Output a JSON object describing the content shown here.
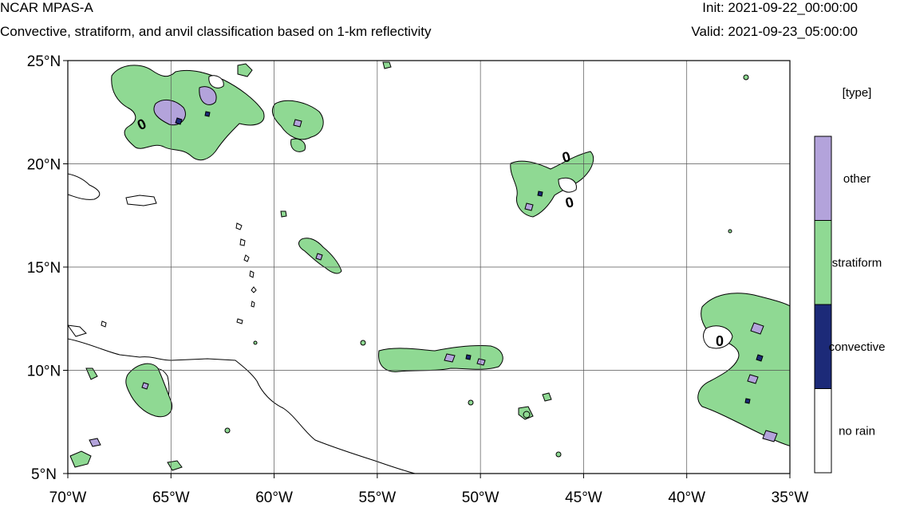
{
  "header": {
    "model": "NCAR MPAS-A",
    "subtitle": "Convective, stratiform, and anvil classification based on 1-km reflectivity",
    "init": "Init: 2021-09-22_00:00:00",
    "valid": "Valid: 2021-09-23_05:00:00"
  },
  "map": {
    "lon_range": [
      -70,
      -35
    ],
    "lat_range": [
      5,
      25
    ],
    "lon_ticks": [
      "70°W",
      "65°W",
      "60°W",
      "55°W",
      "50°W",
      "45°W",
      "40°W",
      "35°W"
    ],
    "lat_ticks": [
      "5°N",
      "10°N",
      "15°N",
      "20°N",
      "25°N"
    ],
    "grid": true,
    "contour_label": "0"
  },
  "legend": {
    "title": "[type]",
    "categories": [
      {
        "label": "other",
        "color": "#b3a3db"
      },
      {
        "label": "stratiform",
        "color": "#8fd993"
      },
      {
        "label": "convective",
        "color": "#1c2a78"
      },
      {
        "label": "no rain",
        "color": "#ffffff"
      }
    ]
  }
}
